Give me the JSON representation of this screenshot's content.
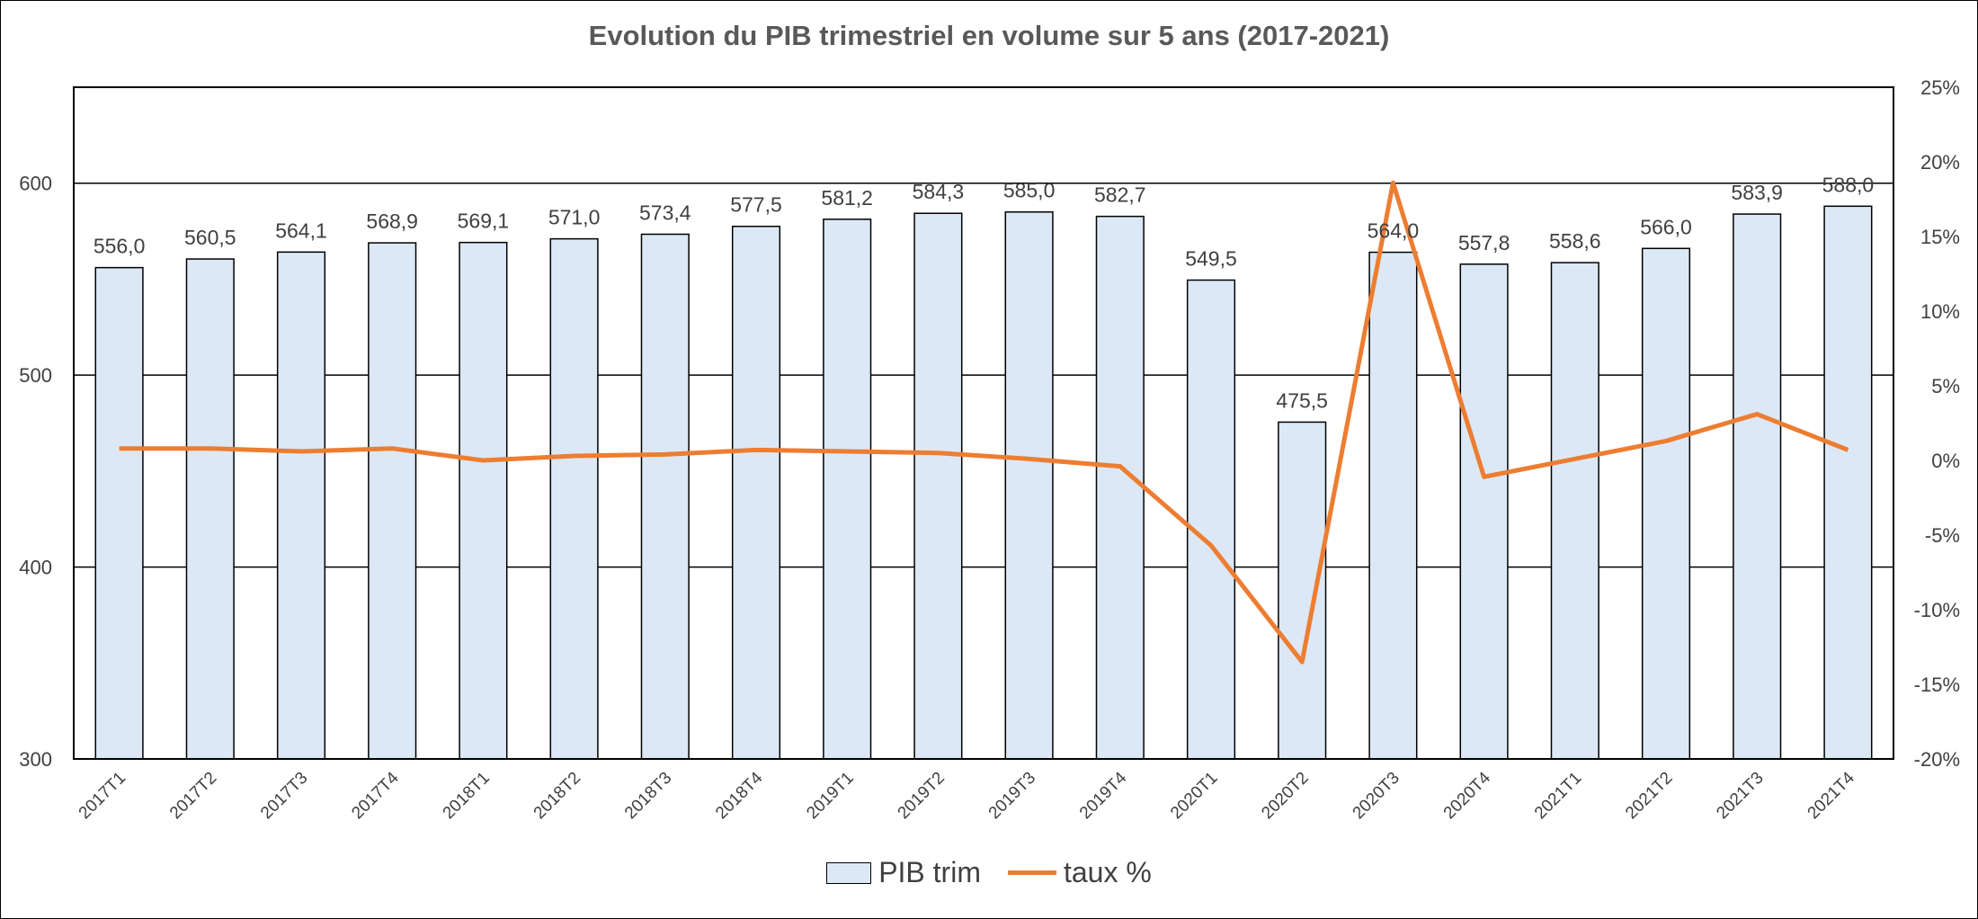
{
  "chart_data": {
    "type": "bar",
    "title": "Evolution du PIB trimestriel en volume sur 5 ans (2017-2021)",
    "categories": [
      "2017T1",
      "2017T2",
      "2017T3",
      "2017T4",
      "2018T1",
      "2018T2",
      "2018T3",
      "2018T4",
      "2019T1",
      "2019T2",
      "2019T3",
      "2019T4",
      "2020T1",
      "2020T2",
      "2020T3",
      "2020T4",
      "2021T1",
      "2021T2",
      "2021T3",
      "2021T4"
    ],
    "series": [
      {
        "name": "PIB trim",
        "type": "bar",
        "axis": "left",
        "values": [
          556.0,
          560.5,
          564.1,
          568.9,
          569.1,
          571.0,
          573.4,
          577.5,
          581.2,
          584.3,
          585.0,
          582.7,
          549.5,
          475.5,
          564.0,
          557.8,
          558.6,
          566.0,
          583.9,
          588.0
        ],
        "labels": [
          "556,0",
          "560,5",
          "564,1",
          "568,9",
          "569,1",
          "571,0",
          "573,4",
          "577,5",
          "581,2",
          "584,3",
          "585,0",
          "582,7",
          "549,5",
          "475,5",
          "564,0",
          "557,8",
          "558,6",
          "566,0",
          "583,9",
          "588,0"
        ]
      },
      {
        "name": "taux %",
        "type": "line",
        "axis": "right",
        "values": [
          0.8,
          0.8,
          0.6,
          0.8,
          0.0,
          0.3,
          0.4,
          0.7,
          0.6,
          0.5,
          0.1,
          -0.4,
          -5.7,
          -13.5,
          18.6,
          -1.1,
          0.1,
          1.3,
          3.1,
          0.7
        ]
      }
    ],
    "y_left": {
      "min": 300,
      "max": 650,
      "ticks": [
        300,
        400,
        500,
        600
      ],
      "tick_labels": [
        "300",
        "400",
        "500",
        "600"
      ]
    },
    "y_right": {
      "min": -20,
      "max": 25,
      "ticks": [
        -20,
        -15,
        -10,
        -5,
        0,
        5,
        10,
        15,
        20,
        25
      ],
      "tick_labels": [
        "-20%",
        "-15%",
        "-10%",
        "-5%",
        "0%",
        "5%",
        "10%",
        "15%",
        "20%",
        "25%"
      ]
    },
    "gridlines": [
      400,
      500,
      600
    ],
    "legend_position": "bottom",
    "colors": {
      "bar_fill": "#dce8f5",
      "bar_stroke": "#000000",
      "line": "#ed7d31",
      "text": "#404040",
      "title": "#595959"
    }
  }
}
